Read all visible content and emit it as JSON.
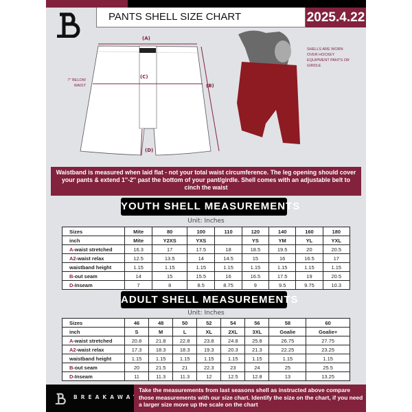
{
  "header": {
    "title": "PANTS SHELL SIZE CHART",
    "date": "2025.4.22"
  },
  "diagram": {
    "label_a": "(A)",
    "label_b": "(B)",
    "label_c": "(C)",
    "label_d": "(D)",
    "c_note": "7'' BELOW WAIST",
    "note": "SHELLS ARE WORN OVER HOCKEY EQUIPMENT PANTS OR GIRDLE"
  },
  "info_band": "Waistband is measured when laid flat - not your total waist circumference. The leg opening should cover your pants & extend 1''-2'' past the bottom of your pant/girdle. Shell comes with an adjustable belt to cinch the waist",
  "youth": {
    "title": "YOUTH SHELL MEASUREMENTS",
    "unit": "Unit: Inches",
    "rows": [
      {
        "prefix": "",
        "label": "Sizes",
        "values": [
          "Mite",
          "80",
          "100",
          "110",
          "120",
          "140",
          "160",
          "180"
        ]
      },
      {
        "prefix": "",
        "label": "inch",
        "values": [
          "Mite",
          "Y2XS",
          "YXS",
          "",
          "YS",
          "YM",
          "YL",
          "YXL"
        ]
      },
      {
        "prefix": "A",
        "label": "-waist stretched",
        "values": [
          "16.3",
          "17",
          "17.5",
          "18",
          "18.5",
          "19.5",
          "20",
          "20.5"
        ]
      },
      {
        "prefix": "A2",
        "label": "-waist relax",
        "values": [
          "12.5",
          "13.5",
          "14",
          "14.5",
          "15",
          "16",
          "16.5",
          "17"
        ]
      },
      {
        "prefix": "",
        "label": "waistband height",
        "values": [
          "1.15",
          "1.15",
          "1.15",
          "1.15",
          "1.15",
          "1.15",
          "1.15",
          "1.15"
        ]
      },
      {
        "prefix": "B",
        "label": "-out seam",
        "values": [
          "14",
          "15",
          "15.5",
          "16",
          "16.5",
          "17.5",
          "19",
          "20.5"
        ]
      },
      {
        "prefix": "D",
        "label": "-Inseam",
        "values": [
          "7",
          "8",
          "8.5",
          "8.75",
          "9",
          "9.5",
          "9.75",
          "10.3"
        ]
      }
    ]
  },
  "adult": {
    "title": "ADULT SHELL MEASUREMENTS",
    "unit": "Unit: Inches",
    "rows": [
      {
        "prefix": "",
        "label": "Sizes",
        "values": [
          "46",
          "48",
          "50",
          "52",
          "54",
          "56",
          "58",
          "60"
        ]
      },
      {
        "prefix": "",
        "label": "inch",
        "values": [
          "S",
          "M",
          "L",
          "XL",
          "2XL",
          "3XL",
          "Goalie",
          "Goalie+"
        ]
      },
      {
        "prefix": "A",
        "label": "-waist stretched",
        "values": [
          "20.8",
          "21.8",
          "22.8",
          "23.8",
          "24.8",
          "25.8",
          "26.75",
          "27.75"
        ]
      },
      {
        "prefix": "A2",
        "label": "-waist relax",
        "values": [
          "17.3",
          "18.3",
          "18.3",
          "19.3",
          "20.3",
          "21.3",
          "22.25",
          "23.25"
        ]
      },
      {
        "prefix": "",
        "label": "waistband height",
        "values": [
          "1.15",
          "1.15",
          "1.15",
          "1.15",
          "1.15",
          "1.15",
          "1.15",
          "1.15"
        ]
      },
      {
        "prefix": "B",
        "label": "-out seam",
        "values": [
          "20",
          "21.5",
          "21",
          "22.3",
          "23",
          "24",
          "25",
          "25.5"
        ]
      },
      {
        "prefix": "D",
        "label": "-Inseam",
        "values": [
          "11",
          "11.3",
          "11.3",
          "12",
          "12.5",
          "12.8",
          "13",
          "13.25"
        ]
      }
    ]
  },
  "footer": {
    "brand": "BREAKAWAY",
    "text": "Take the measurements from last seasons shell as instructed above compare those measurements  with our size chart. Identify the size on the chart, if you need a larger size move up the scale on the chart"
  },
  "colors": {
    "accent": "#82223d",
    "background": "#e1e2e6"
  }
}
